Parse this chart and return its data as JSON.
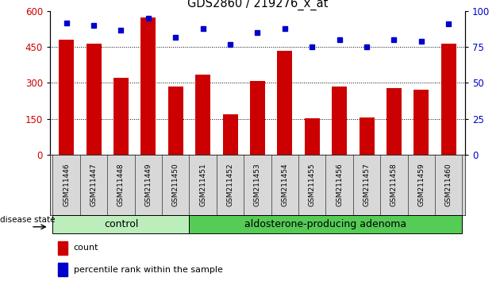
{
  "title": "GDS2860 / 219276_x_at",
  "categories": [
    "GSM211446",
    "GSM211447",
    "GSM211448",
    "GSM211449",
    "GSM211450",
    "GSM211451",
    "GSM211452",
    "GSM211453",
    "GSM211454",
    "GSM211455",
    "GSM211456",
    "GSM211457",
    "GSM211458",
    "GSM211459",
    "GSM211460"
  ],
  "counts": [
    480,
    465,
    320,
    575,
    285,
    335,
    168,
    308,
    435,
    152,
    285,
    155,
    278,
    270,
    465
  ],
  "percentiles": [
    92,
    90,
    87,
    95,
    82,
    88,
    77,
    85,
    88,
    75,
    80,
    75,
    80,
    79,
    91
  ],
  "count_color": "#cc0000",
  "percentile_color": "#0000cc",
  "ylim_left": [
    0,
    600
  ],
  "ylim_right": [
    0,
    100
  ],
  "yticks_left": [
    0,
    150,
    300,
    450,
    600
  ],
  "yticks_right": [
    0,
    25,
    50,
    75,
    100
  ],
  "grid_lines": [
    150,
    300,
    450
  ],
  "group_labels": [
    "control",
    "aldosterone-producing adenoma"
  ],
  "group_colors": [
    "#bbeebb",
    "#55cc55"
  ],
  "disease_state_label": "disease state",
  "legend_count_label": "count",
  "legend_pct_label": "percentile rank within the sample",
  "bar_width": 0.55,
  "label_bg_color": "#d8d8d8",
  "plot_bg": "#ffffff",
  "control_count": 5
}
